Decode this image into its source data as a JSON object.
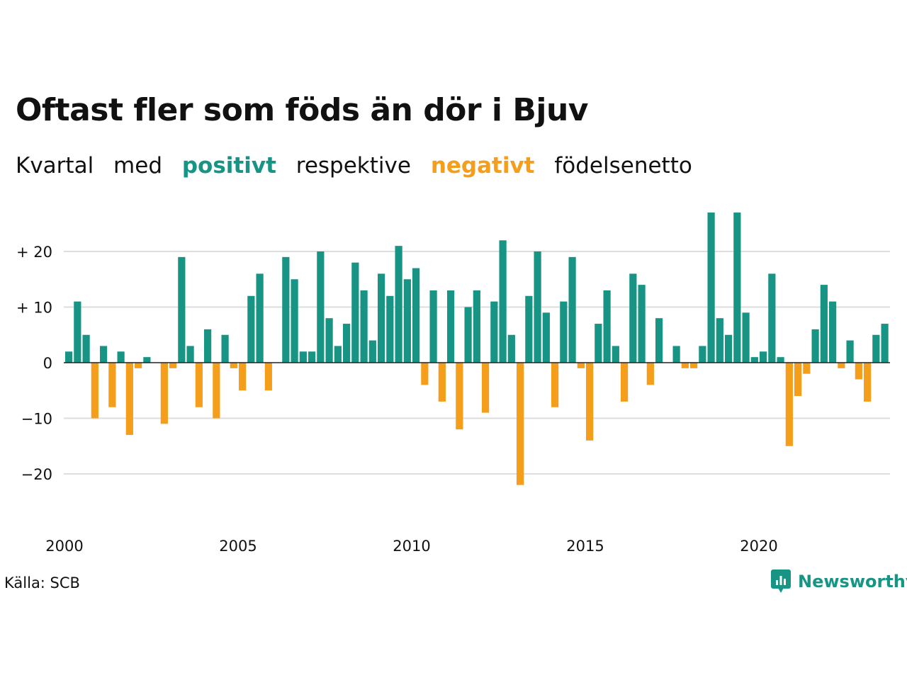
{
  "title": "Oftast fler som föds än dör i Bjuv",
  "subtitle": {
    "w1": "Kvartal",
    "w2": "med",
    "positive_word": "positivt",
    "w3": "respektive",
    "negative_word": "negativt",
    "w4": "födelsenetto"
  },
  "source": "Källa: SCB",
  "brand": {
    "name": "Newsworthy",
    "icon": "newsworthy-logo-icon"
  },
  "colors": {
    "positive": "#179484",
    "negative": "#f59e1b",
    "grid": "#dddddd",
    "text": "#111111"
  },
  "chart_data": {
    "type": "bar",
    "x_start": "2000 Q1",
    "x_tick_labels": [
      "2000",
      "2005",
      "2010",
      "2015",
      "2020"
    ],
    "y_tick_labels": [
      "+ 20",
      "+ 10",
      "0",
      "−10",
      "−20"
    ],
    "y_ticks": [
      20,
      10,
      0,
      -10,
      -20
    ],
    "ylim": [
      -28,
      30
    ],
    "grid": true,
    "values": [
      2,
      11,
      5,
      -10,
      3,
      -8,
      2,
      -13,
      -1,
      1,
      0,
      -11,
      -1,
      19,
      3,
      -8,
      6,
      -10,
      5,
      -1,
      -5,
      12,
      16,
      -5,
      0,
      19,
      15,
      2,
      2,
      20,
      8,
      3,
      7,
      18,
      13,
      4,
      16,
      12,
      21,
      15,
      17,
      -4,
      13,
      -7,
      13,
      -12,
      10,
      13,
      -9,
      11,
      22,
      5,
      -22,
      12,
      20,
      9,
      -8,
      11,
      19,
      -1,
      -14,
      7,
      13,
      3,
      -7,
      16,
      14,
      -4,
      8,
      0,
      3,
      -1,
      -1,
      3,
      27,
      8,
      5,
      27,
      9,
      1,
      2,
      16,
      1,
      -15,
      -6,
      -2,
      6,
      14,
      11,
      -1,
      4,
      -3,
      -7,
      5,
      7
    ]
  }
}
